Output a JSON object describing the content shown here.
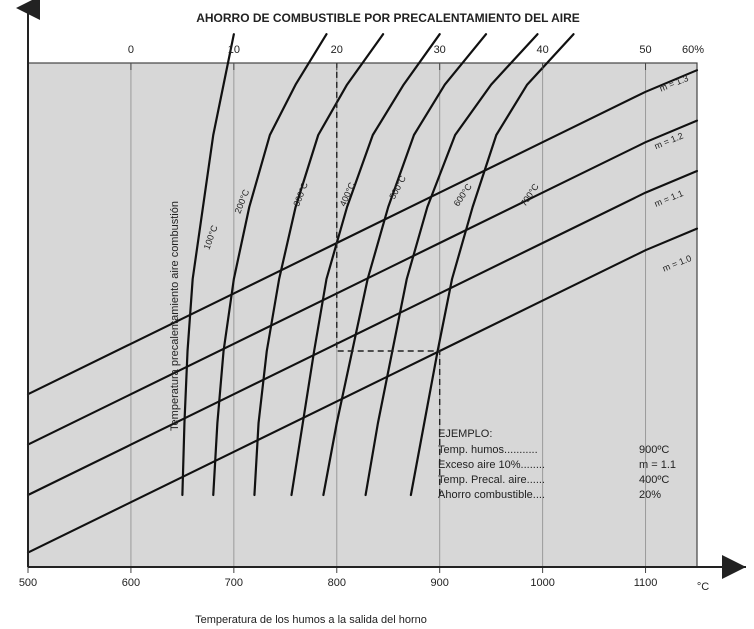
{
  "chart_data": {
    "type": "line",
    "title": "AHORRO DE COMBUSTIBLE POR PRECALENTAMIENTO DEL AIRE",
    "xlabel": "Temperatura de los humos a la salida del horno",
    "ylabel": "Temperatura precalentamiento aire combustión",
    "x_unit_label": "°C",
    "top_unit_label": "60%",
    "x_ticks": [
      "500",
      "600",
      "700",
      "800",
      "900",
      "1000",
      "1100"
    ],
    "top_ticks": [
      "0",
      "10",
      "20",
      "30",
      "40",
      "50"
    ],
    "xlim": [
      500,
      1150
    ],
    "top_lim": [
      -10,
      60
    ],
    "grid": true,
    "curve_labels": [
      "100°C",
      "200°C",
      "300°C",
      "400°C",
      "500°C",
      "600°C",
      "700°C"
    ],
    "m_labels": [
      "m = 1.3",
      "m = 1.2",
      "m = 1.1",
      "m = 1.0"
    ],
    "example": {
      "title": "EJEMPLO:",
      "rows": [
        {
          "label": "Temp. humos...........",
          "value": "900ºC"
        },
        {
          "label": "Exceso aire 10%........",
          "value": "m = 1.1"
        },
        {
          "label": "Temp. Precal. aire......",
          "value": "400ºC"
        },
        {
          "label": "Ahorro combustible....",
          "value": "20%"
        }
      ]
    },
    "series": [
      {
        "name": "100°C",
        "x": [
          650,
          652,
          655,
          660,
          670,
          680,
          690,
          700
        ],
        "y": [
          0,
          10,
          20,
          30,
          40,
          50,
          57,
          64
        ]
      },
      {
        "name": "200°C",
        "x": [
          680,
          684,
          690,
          700,
          715,
          735,
          760,
          790
        ],
        "y": [
          0,
          10,
          20,
          30,
          40,
          50,
          57,
          64
        ]
      },
      {
        "name": "300°C",
        "x": [
          720,
          724,
          732,
          744,
          760,
          782,
          810,
          845
        ],
        "y": [
          0,
          10,
          20,
          30,
          40,
          50,
          57,
          64
        ]
      },
      {
        "name": "400°C",
        "x": [
          756,
          767,
          778,
          790,
          810,
          835,
          865,
          900
        ],
        "y": [
          0,
          10,
          20,
          30,
          40,
          50,
          57,
          64
        ]
      },
      {
        "name": "500°C",
        "x": [
          787,
          800,
          815,
          830,
          850,
          875,
          905,
          945
        ],
        "y": [
          0,
          10,
          20,
          30,
          40,
          50,
          57,
          64
        ]
      },
      {
        "name": "600°C",
        "x": [
          828,
          840,
          854,
          868,
          888,
          915,
          950,
          995
        ],
        "y": [
          0,
          10,
          20,
          30,
          40,
          50,
          57,
          64
        ]
      },
      {
        "name": "700°C",
        "x": [
          872,
          885,
          898,
          912,
          932,
          955,
          985,
          1030
        ],
        "y": [
          0,
          10,
          20,
          30,
          40,
          50,
          57,
          64
        ]
      },
      {
        "name": "m = 1.0",
        "x": [
          500,
          600,
          700,
          800,
          900,
          1000,
          1100,
          1150
        ],
        "y": [
          -8,
          -1,
          6,
          13,
          20,
          27,
          34,
          37
        ]
      },
      {
        "name": "m = 1.1",
        "x": [
          500,
          600,
          700,
          800,
          900,
          1000,
          1100,
          1150
        ],
        "y": [
          0,
          7,
          14,
          21,
          28,
          35,
          42,
          45
        ]
      },
      {
        "name": "m = 1.2",
        "x": [
          500,
          600,
          700,
          800,
          900,
          1000,
          1100,
          1150
        ],
        "y": [
          7,
          14,
          21,
          28,
          35,
          42,
          49,
          52
        ]
      },
      {
        "name": "m = 1.3",
        "x": [
          500,
          600,
          700,
          800,
          900,
          1000,
          1100,
          1150
        ],
        "y": [
          14,
          21,
          28,
          35,
          42,
          49,
          56,
          59
        ]
      }
    ],
    "example_path": {
      "x": [
        900,
        900,
        800,
        800
      ],
      "y": [
        0,
        20,
        20,
        60
      ]
    }
  }
}
